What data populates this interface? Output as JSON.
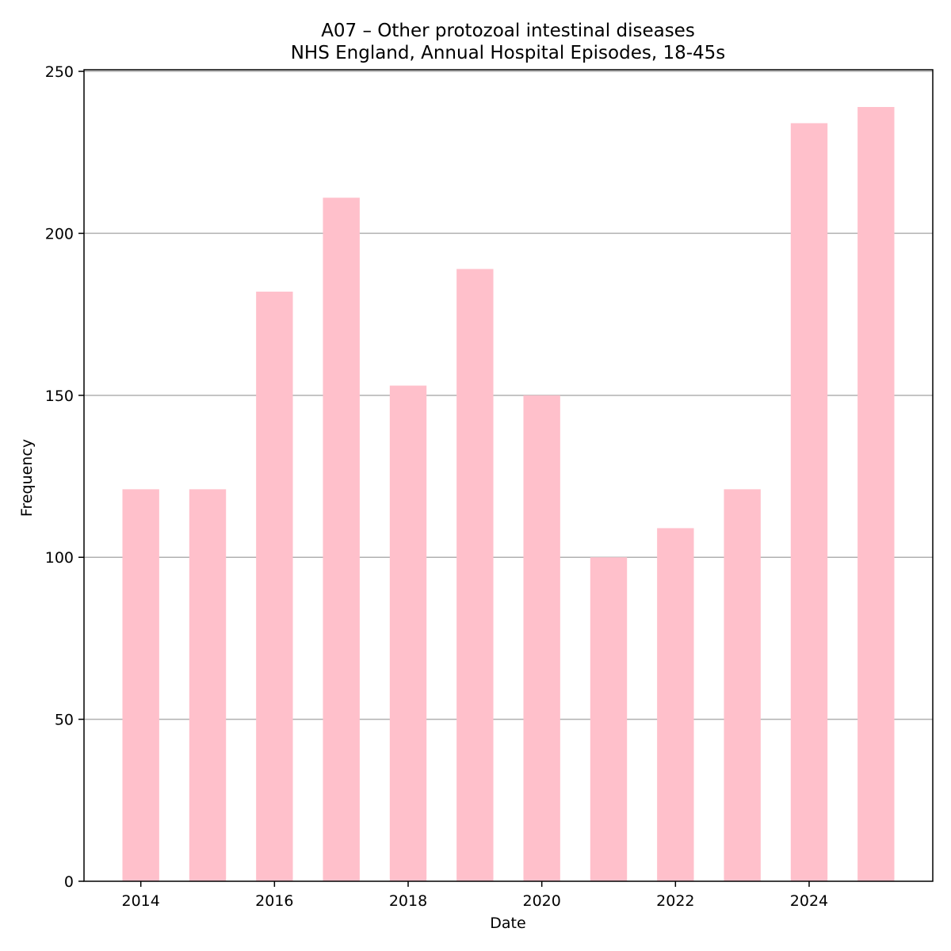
{
  "chart_data": {
    "type": "bar",
    "title": "A07 – Other protozoal intestinal diseases",
    "subtitle": "NHS England, Annual Hospital Episodes, 18-45s",
    "xlabel": "Date",
    "ylabel": "Frequency",
    "categories": [
      2014,
      2015,
      2016,
      2017,
      2018,
      2019,
      2020,
      2021,
      2022,
      2023,
      2024,
      2025
    ],
    "values": [
      121,
      121,
      182,
      211,
      153,
      189,
      150,
      100,
      109,
      121,
      234,
      239
    ],
    "xticks": [
      "2014",
      "2016",
      "2018",
      "2020",
      "2022",
      "2024"
    ],
    "yticks": [
      "0",
      "50",
      "100",
      "150",
      "200",
      "250"
    ],
    "ylim": [
      0,
      250.5
    ],
    "xlim": [
      2013.15,
      2025.85
    ],
    "grid": "y",
    "bar_color": "#ffc0cb"
  }
}
